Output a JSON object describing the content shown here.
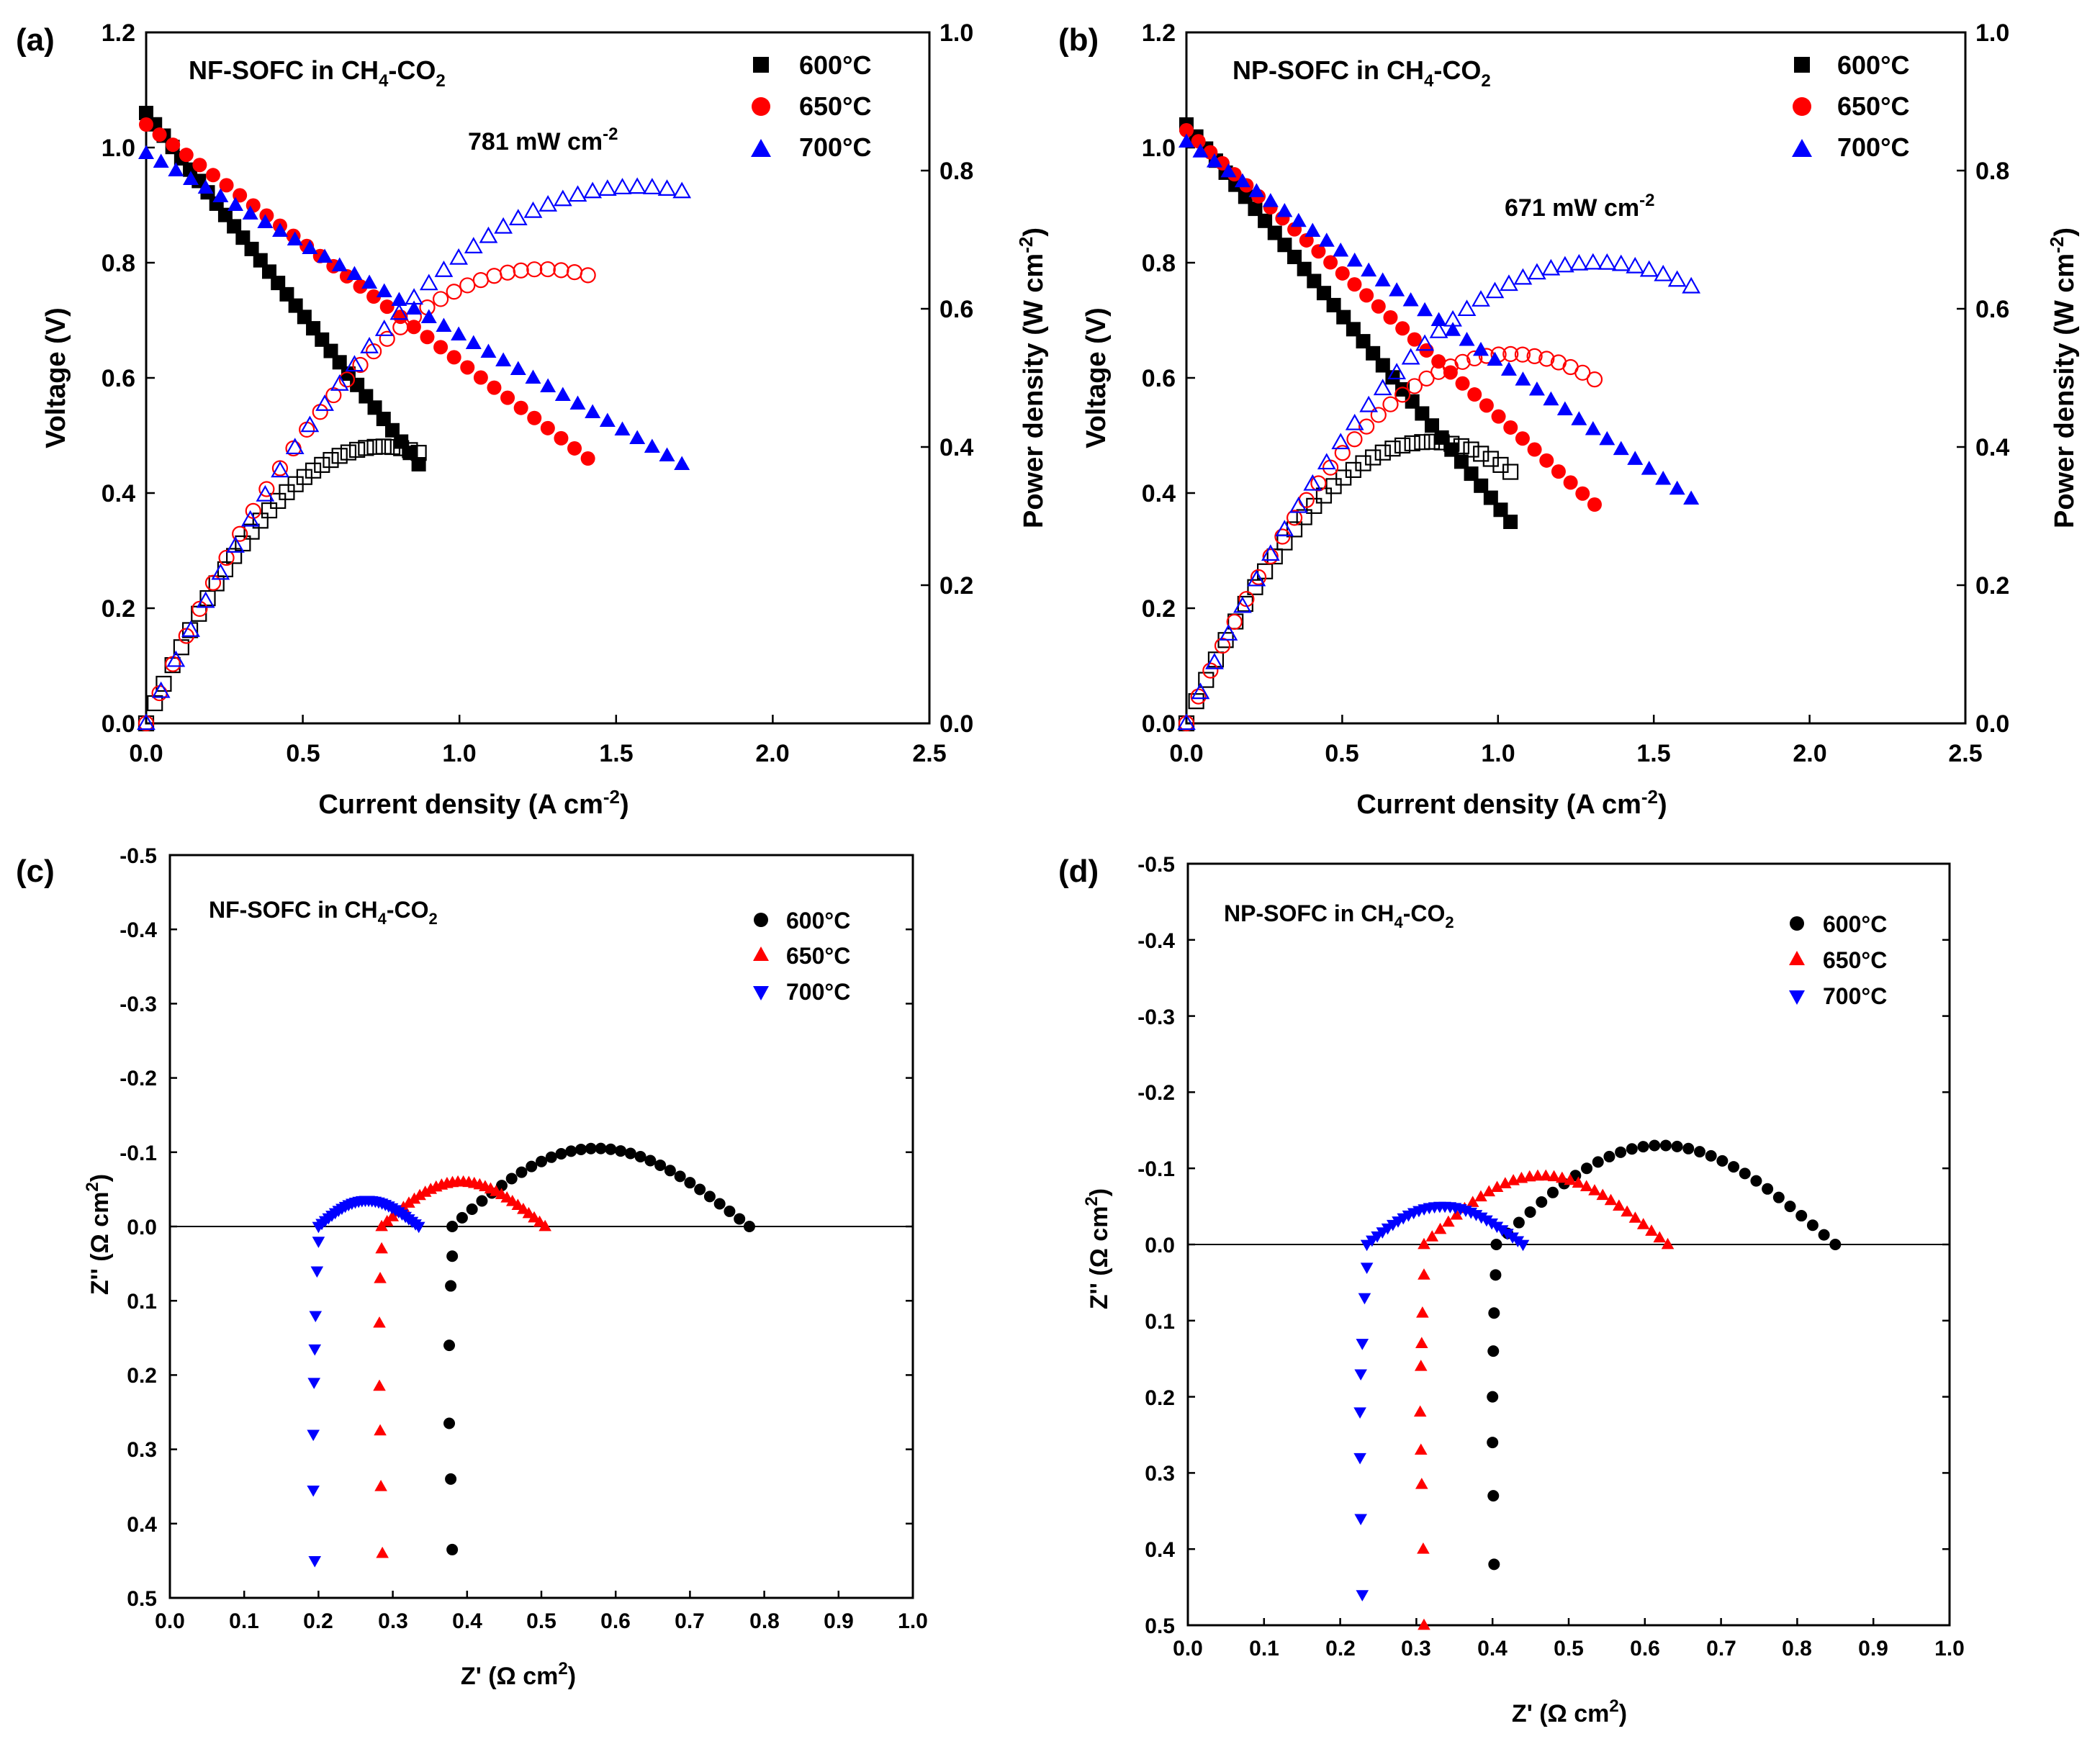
{
  "colors": {
    "c600": "#000000",
    "c650": "#ff0000",
    "c700": "#0000ff",
    "axis": "#000000"
  },
  "chart_data": [
    {
      "panel_label": "(a)",
      "type": "scatter",
      "title_main": "NF-SOFC in CH",
      "title_sub4": "4",
      "title_mid": "-CO",
      "title_sub2": "2",
      "annotation_value": "781 mW cm",
      "annotation_exp": "-2",
      "xlabel_main": "Current density (A cm",
      "xlabel_exp": "-2",
      "xlabel_end": ")",
      "ylabel_left": "Voltage (V)",
      "ylabel_right_main": "Power density (W cm",
      "ylabel_right_exp": "-2",
      "ylabel_right_end": ")",
      "xlim": [
        0,
        2.5
      ],
      "ylim_left": [
        0,
        1.2
      ],
      "ylim_right": [
        0,
        1.0
      ],
      "xticks": [
        "0.0",
        "0.5",
        "1.0",
        "1.5",
        "2.0",
        "2.5"
      ],
      "yticks_left": [
        "0.0",
        "0.2",
        "0.4",
        "0.6",
        "0.8",
        "1.0",
        "1.2"
      ],
      "yticks_right": [
        "0.0",
        "0.2",
        "0.4",
        "0.6",
        "0.8",
        "1.0"
      ],
      "legend": [
        "600°C",
        "650°C",
        "700°C"
      ],
      "series": [
        {
          "name": "600°C",
          "color": "#000000",
          "marker": "square",
          "ocv": 1.06,
          "imax": 0.87,
          "vend": 0.45,
          "n": 31
        },
        {
          "name": "650°C",
          "color": "#ff0000",
          "marker": "circle",
          "ocv": 1.04,
          "imax": 1.41,
          "vend": 0.46,
          "n": 33
        },
        {
          "name": "700°C",
          "color": "#0000ff",
          "marker": "triangle-up",
          "ocv": 0.99,
          "imax": 1.71,
          "vend": 0.45,
          "n": 36
        }
      ]
    },
    {
      "panel_label": "(b)",
      "type": "scatter",
      "title_main": "NP-SOFC in CH",
      "title_sub4": "4",
      "title_mid": "-CO",
      "title_sub2": "2",
      "annotation_value": "671 mW cm",
      "annotation_exp": "-2",
      "xlabel_main": "Current density (A cm",
      "xlabel_exp": "-2",
      "xlabel_end": ")",
      "ylabel_left": "Voltage (V)",
      "ylabel_right_main": "Power density (W cm",
      "ylabel_right_exp": "-2",
      "ylabel_right_end": ")",
      "xlim": [
        0,
        2.5
      ],
      "ylim_left": [
        0,
        1.2
      ],
      "ylim_right": [
        0,
        1.0
      ],
      "xticks": [
        "0.0",
        "0.5",
        "1.0",
        "1.5",
        "2.0",
        "2.5"
      ],
      "yticks_left": [
        "0.0",
        "0.2",
        "0.4",
        "0.6",
        "0.8",
        "1.0",
        "1.2"
      ],
      "yticks_right": [
        "0.0",
        "0.2",
        "0.4",
        "0.6",
        "0.8",
        "1.0"
      ],
      "legend": [
        "600°C",
        "650°C",
        "700°C"
      ],
      "series": [
        {
          "name": "600°C",
          "color": "#000000",
          "marker": "square",
          "ocv": 1.04,
          "imax": 1.04,
          "vend": 0.35,
          "n": 33
        },
        {
          "name": "650°C",
          "color": "#ff0000",
          "marker": "circle",
          "ocv": 1.03,
          "imax": 1.31,
          "vend": 0.38,
          "n": 34
        },
        {
          "name": "700°C",
          "color": "#0000ff",
          "marker": "triangle-up",
          "ocv": 1.01,
          "imax": 1.62,
          "vend": 0.39,
          "n": 36
        }
      ]
    },
    {
      "panel_label": "(c)",
      "type": "scatter",
      "title_main": "NF-SOFC in CH",
      "title_sub4": "4",
      "title_mid": "-CO",
      "title_sub2": "2",
      "xlabel_main": "Z' (Ω cm",
      "xlabel_exp": "2",
      "xlabel_end": ")",
      "ylabel_main": "Z'' (Ω cm",
      "ylabel_exp": "2",
      "ylabel_end": ")",
      "xlim": [
        0,
        1.0
      ],
      "ylim": [
        -0.5,
        0.5
      ],
      "xticks": [
        "0.0",
        "0.1",
        "0.2",
        "0.3",
        "0.4",
        "0.5",
        "0.6",
        "0.7",
        "0.8",
        "0.9",
        "1.0"
      ],
      "yticks": [
        "-0.5",
        "-0.4",
        "-0.3",
        "-0.2",
        "-0.1",
        "0.0",
        "0.1",
        "0.2",
        "0.3",
        "0.4",
        "0.5"
      ],
      "legend": [
        "600°C",
        "650°C",
        "700°C"
      ],
      "series": [
        {
          "name": "600°C",
          "color": "#000000",
          "marker": "circle",
          "r0": 0.38,
          "r1": 0.78,
          "peak": 0.105,
          "tail": [
            [
              0.38,
              0.04
            ],
            [
              0.378,
              0.08
            ],
            [
              0.376,
              0.16
            ],
            [
              0.376,
              0.265
            ],
            [
              0.378,
              0.34
            ],
            [
              0.38,
              0.435
            ]
          ]
        },
        {
          "name": "650°C",
          "color": "#ff0000",
          "marker": "triangle-up",
          "r0": 0.285,
          "r1": 0.505,
          "peak": 0.06,
          "tail": [
            [
              0.285,
              0.03
            ],
            [
              0.283,
              0.07
            ],
            [
              0.282,
              0.13
            ],
            [
              0.282,
              0.215
            ],
            [
              0.283,
              0.275
            ],
            [
              0.284,
              0.35
            ],
            [
              0.286,
              0.44
            ]
          ]
        },
        {
          "name": "700°C",
          "color": "#0000ff",
          "marker": "triangle-down",
          "r0": 0.2,
          "r1": 0.335,
          "peak": 0.035,
          "tail": [
            [
              0.2,
              0.02
            ],
            [
              0.198,
              0.06
            ],
            [
              0.196,
              0.12
            ],
            [
              0.195,
              0.165
            ],
            [
              0.194,
              0.21
            ],
            [
              0.193,
              0.28
            ],
            [
              0.193,
              0.355
            ],
            [
              0.195,
              0.45
            ]
          ]
        }
      ]
    },
    {
      "panel_label": "(d)",
      "type": "scatter",
      "title_main": "NP-SOFC in CH",
      "title_sub4": "4",
      "title_mid": "-CO",
      "title_sub2": "2",
      "xlabel_main": "Z' (Ω cm",
      "xlabel_exp": "2",
      "xlabel_end": ")",
      "ylabel_main": "Z'' (Ω cm",
      "ylabel_exp": "2",
      "ylabel_end": ")",
      "xlim": [
        0,
        1.0
      ],
      "ylim": [
        -0.5,
        0.5
      ],
      "xticks": [
        "0.0",
        "0.1",
        "0.2",
        "0.3",
        "0.4",
        "0.5",
        "0.6",
        "0.7",
        "0.8",
        "0.9",
        "1.0"
      ],
      "yticks": [
        "-0.5",
        "-0.4",
        "-0.3",
        "-0.2",
        "-0.1",
        "0.0",
        "0.1",
        "0.2",
        "0.3",
        "0.4",
        "0.5"
      ],
      "legend": [
        "600°C",
        "650°C",
        "700°C"
      ],
      "series": [
        {
          "name": "600°C",
          "color": "#000000",
          "marker": "circle",
          "r0": 0.405,
          "r1": 0.85,
          "peak": 0.13,
          "tail": [
            [
              0.404,
              0.04
            ],
            [
              0.402,
              0.09
            ],
            [
              0.401,
              0.14
            ],
            [
              0.4,
              0.2
            ],
            [
              0.4,
              0.26
            ],
            [
              0.401,
              0.33
            ],
            [
              0.402,
              0.42
            ]
          ]
        },
        {
          "name": "650°C",
          "color": "#ff0000",
          "marker": "triangle-up",
          "r0": 0.31,
          "r1": 0.63,
          "peak": 0.09,
          "tail": [
            [
              0.31,
              0.04
            ],
            [
              0.308,
              0.09
            ],
            [
              0.307,
              0.13
            ],
            [
              0.306,
              0.16
            ],
            [
              0.305,
              0.22
            ],
            [
              0.306,
              0.27
            ],
            [
              0.307,
              0.315
            ],
            [
              0.309,
              0.4
            ],
            [
              0.31,
              0.5
            ]
          ]
        },
        {
          "name": "700°C",
          "color": "#0000ff",
          "marker": "triangle-down",
          "r0": 0.235,
          "r1": 0.44,
          "peak": 0.05,
          "tail": [
            [
              0.235,
              0.03
            ],
            [
              0.232,
              0.07
            ],
            [
              0.229,
              0.13
            ],
            [
              0.227,
              0.17
            ],
            [
              0.226,
              0.22
            ],
            [
              0.226,
              0.28
            ],
            [
              0.227,
              0.36
            ],
            [
              0.229,
              0.46
            ]
          ]
        }
      ]
    }
  ]
}
